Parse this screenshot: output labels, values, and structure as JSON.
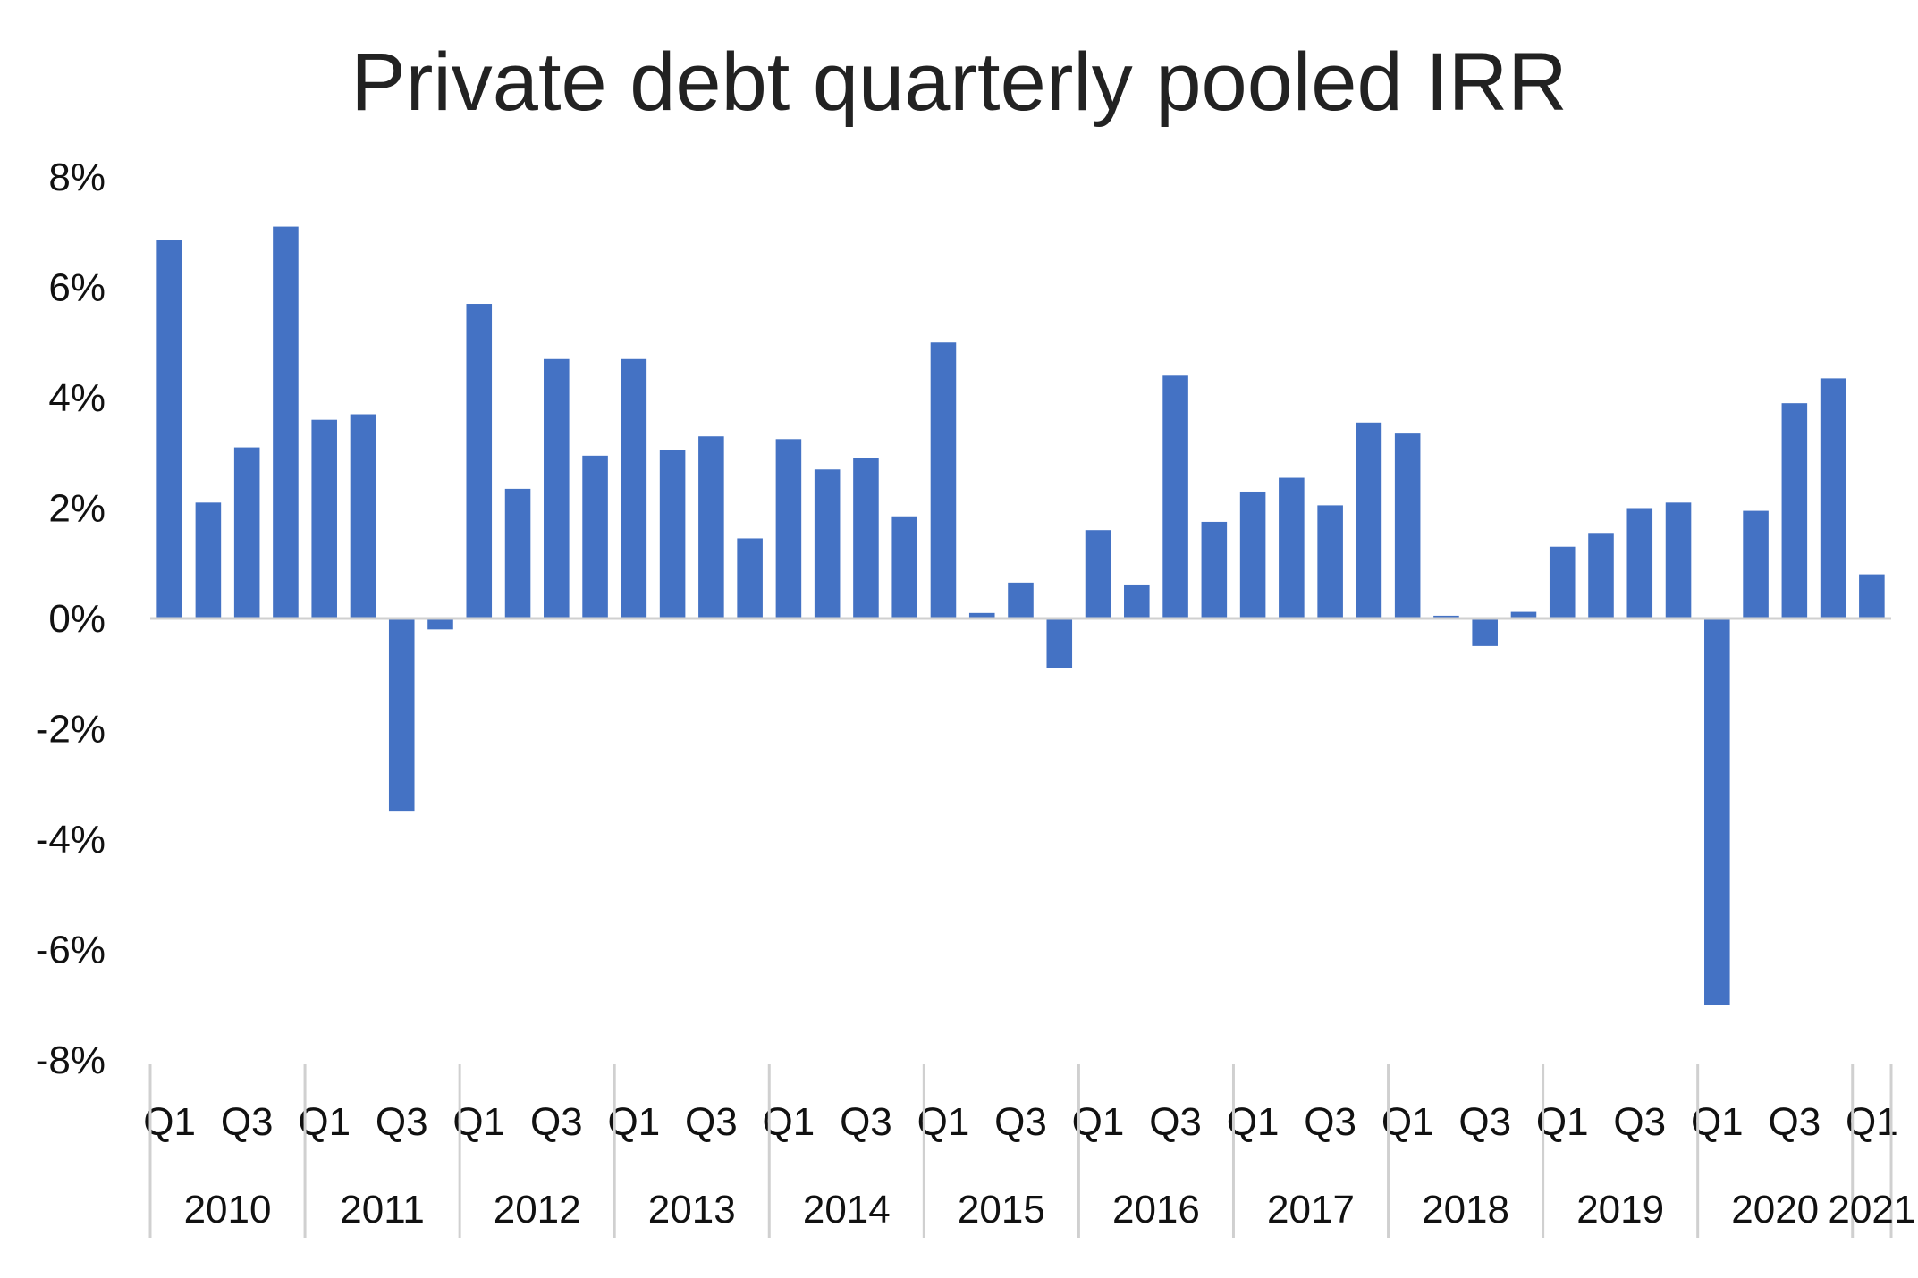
{
  "chart_data": {
    "type": "bar",
    "title": "Private debt quarterly pooled IRR",
    "xlabel": "",
    "ylabel": "",
    "ylim": [
      -8,
      8
    ],
    "yticks": [
      "8%",
      "6%",
      "4%",
      "2%",
      "0%",
      "-2%",
      "-4%",
      "-6%",
      "-8%"
    ],
    "ytick_values": [
      8,
      6,
      4,
      2,
      0,
      -2,
      -4,
      -6,
      -8
    ],
    "grid": false,
    "legend": "none",
    "color": "#4472C4",
    "years": [
      "2010",
      "2011",
      "2012",
      "2013",
      "2014",
      "2015",
      "2016",
      "2017",
      "2018",
      "2019",
      "2020",
      "2021"
    ],
    "quarter_labels": [
      "Q1",
      "Q3",
      "Q1",
      "Q3",
      "Q1",
      "Q3",
      "Q1",
      "Q3",
      "Q1",
      "Q3",
      "Q1",
      "Q3",
      "Q1",
      "Q3",
      "Q1",
      "Q3",
      "Q1",
      "Q3",
      "Q1",
      "Q3",
      "Q1",
      "Q3",
      "Q1"
    ],
    "categories": [
      "2010 Q1",
      "2010 Q2",
      "2010 Q3",
      "2010 Q4",
      "2011 Q1",
      "2011 Q2",
      "2011 Q3",
      "2011 Q4",
      "2012 Q1",
      "2012 Q2",
      "2012 Q3",
      "2012 Q4",
      "2013 Q1",
      "2013 Q2",
      "2013 Q3",
      "2013 Q4",
      "2014 Q1",
      "2014 Q2",
      "2014 Q3",
      "2014 Q4",
      "2015 Q1",
      "2015 Q2",
      "2015 Q3",
      "2015 Q4",
      "2016 Q1",
      "2016 Q2",
      "2016 Q3",
      "2016 Q4",
      "2017 Q1",
      "2017 Q2",
      "2017 Q3",
      "2017 Q4",
      "2018 Q1",
      "2018 Q2",
      "2018 Q3",
      "2018 Q4",
      "2019 Q1",
      "2019 Q2",
      "2019 Q3",
      "2019 Q4",
      "2020 Q1",
      "2020 Q2",
      "2020 Q3",
      "2020 Q4",
      "2021 Q1"
    ],
    "values": [
      6.85,
      2.1,
      3.1,
      7.1,
      3.6,
      3.7,
      -3.5,
      -0.2,
      5.7,
      2.35,
      4.7,
      2.95,
      4.7,
      3.05,
      3.3,
      1.45,
      3.25,
      2.7,
      2.9,
      1.85,
      5.0,
      0.1,
      0.65,
      -0.9,
      1.6,
      0.6,
      4.4,
      1.75,
      2.3,
      2.55,
      2.05,
      3.55,
      3.35,
      0.05,
      -0.5,
      0.12,
      1.3,
      1.55,
      2.0,
      2.1,
      -7.0,
      1.95,
      3.9,
      4.35,
      0.8
    ]
  }
}
